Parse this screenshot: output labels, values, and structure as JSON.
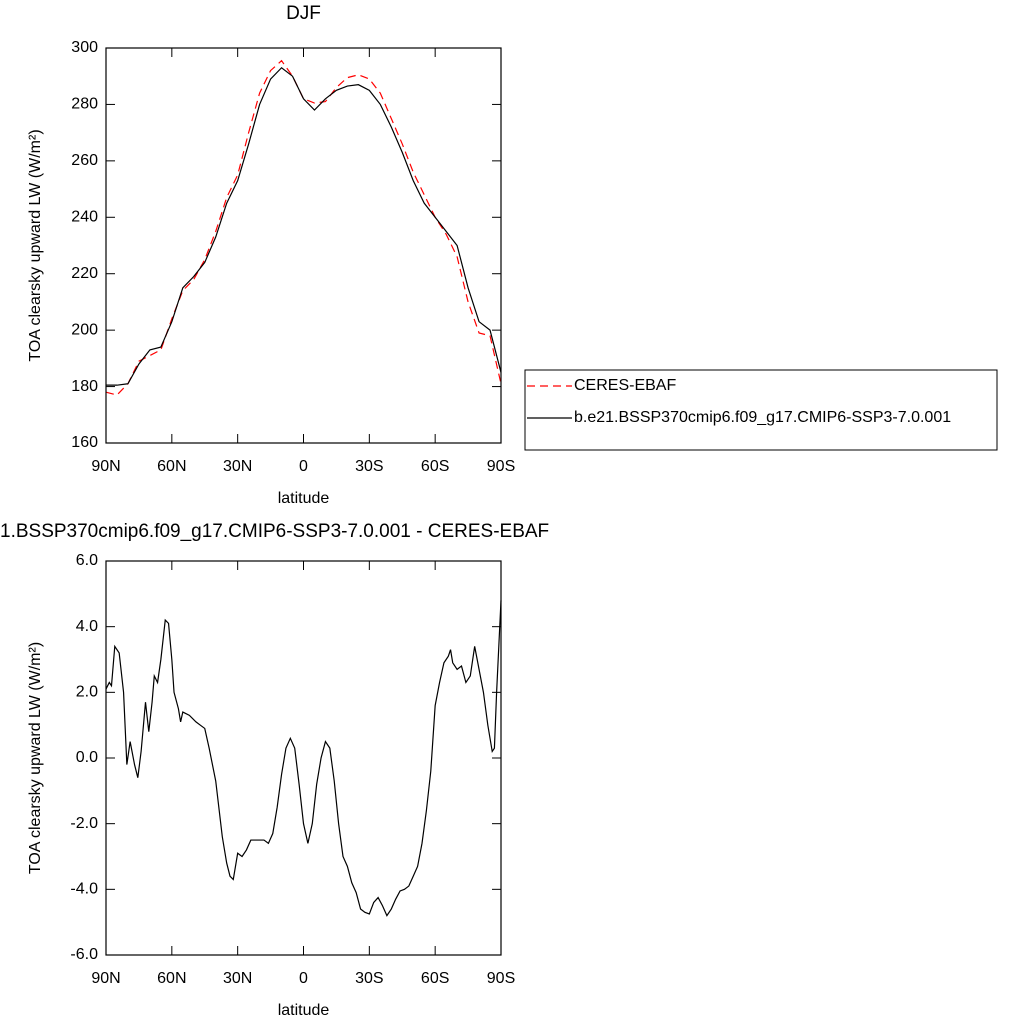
{
  "chart_data": [
    {
      "type": "line",
      "title": "DJF",
      "xlabel": "latitude",
      "ylabel": "TOA clearsky upward LW (W/m²)",
      "x": [
        90,
        85,
        80,
        75,
        70,
        65,
        60,
        55,
        50,
        45,
        40,
        35,
        30,
        25,
        20,
        15,
        10,
        5,
        0,
        -5,
        -10,
        -15,
        -20,
        -25,
        -30,
        -35,
        -40,
        -45,
        -50,
        -55,
        -60,
        -65,
        -70,
        -75,
        -80,
        -85,
        -90
      ],
      "series": [
        {
          "name": "CERES-EBAF",
          "color": "#ff0000",
          "linestyle": "dashed",
          "values": [
            178,
            177,
            181,
            189,
            191,
            193,
            204,
            214,
            218,
            225,
            235,
            247,
            255,
            270,
            284,
            292,
            295.5,
            290,
            282,
            280.5,
            281,
            286,
            289.5,
            290.5,
            289,
            284,
            275,
            266,
            256,
            248,
            240,
            234,
            226,
            210,
            199,
            198,
            181
          ]
        },
        {
          "name": "b.e21.BSSP370cmip6.f09_g17.CMIP6-SSP3-7.0.001",
          "color": "#000000",
          "linestyle": "solid",
          "values": [
            180.5,
            180.5,
            181,
            188,
            193,
            194,
            203,
            215,
            219,
            224,
            233,
            245,
            253,
            266,
            280,
            289,
            293,
            290,
            282,
            278,
            282,
            285,
            286.5,
            287,
            285,
            280,
            272,
            263,
            253,
            245,
            240,
            235,
            230,
            215,
            203,
            200,
            185
          ]
        }
      ],
      "xlim": [
        90,
        -90
      ],
      "xticks": [
        {
          "value": 90,
          "label": "90N"
        },
        {
          "value": 60,
          "label": "60N"
        },
        {
          "value": 30,
          "label": "30N"
        },
        0,
        {
          "value": -30,
          "label": "30S"
        },
        {
          "value": -60,
          "label": "60S"
        },
        {
          "value": -90,
          "label": "90S"
        }
      ],
      "ylim": [
        160,
        300
      ],
      "yticks": [
        160,
        180,
        200,
        220,
        240,
        260,
        280,
        300
      ],
      "grid": false,
      "legend": "right"
    },
    {
      "type": "line",
      "title": "1.BSSP370cmip6.f09_g17.CMIP6-SSP3-7.0.001 - CERES-EBAF",
      "xlabel": "latitude",
      "ylabel": "TOA clearsky upward LW (W/m²)",
      "x": [
        90,
        88.5,
        87.5,
        86,
        84,
        82,
        80.5,
        79,
        77,
        75.5,
        74,
        72,
        70.5,
        69,
        68,
        66.5,
        65,
        63,
        61.5,
        60,
        59,
        57,
        56,
        55,
        52,
        49,
        47,
        45,
        43,
        40,
        37,
        35,
        33.5,
        32,
        30,
        28,
        26,
        24,
        20,
        18,
        16,
        14,
        12,
        10,
        8,
        6,
        4,
        2,
        0,
        -2,
        -4,
        -6,
        -8,
        -10,
        -12,
        -14,
        -16,
        -18,
        -20,
        -22,
        -24,
        -26,
        -28,
        -30,
        -32,
        -34,
        -36,
        -38,
        -40,
        -42,
        -44,
        -46,
        -48,
        -50,
        -52,
        -54,
        -56,
        -58,
        -60,
        -62,
        -64,
        -66,
        -67,
        -68,
        -70,
        -72,
        -74,
        -76,
        -78,
        -80,
        -82,
        -84,
        -86,
        -87,
        -88,
        -90
      ],
      "series": [
        {
          "color": "#000000",
          "linestyle": "solid",
          "values": [
            2.1,
            2.3,
            2.2,
            3.4,
            3.2,
            2.0,
            -0.2,
            0.5,
            -0.2,
            -0.6,
            0.2,
            1.7,
            0.8,
            1.7,
            2.5,
            2.3,
            3.0,
            4.2,
            4.1,
            3.0,
            2.0,
            1.5,
            1.1,
            1.4,
            1.3,
            1.1,
            1.0,
            0.9,
            0.3,
            -0.7,
            -2.4,
            -3.2,
            -3.6,
            -3.7,
            -2.9,
            -3.0,
            -2.8,
            -2.5,
            -2.5,
            -2.5,
            -2.6,
            -2.3,
            -1.5,
            -0.5,
            0.3,
            0.6,
            0.3,
            -0.8,
            -2.0,
            -2.6,
            -2.0,
            -0.8,
            0.0,
            0.5,
            0.3,
            -0.7,
            -2.0,
            -3.0,
            -3.3,
            -3.8,
            -4.1,
            -4.6,
            -4.7,
            -4.75,
            -4.4,
            -4.25,
            -4.5,
            -4.8,
            -4.6,
            -4.3,
            -4.05,
            -4.0,
            -3.9,
            -3.6,
            -3.3,
            -2.6,
            -1.6,
            -0.4,
            1.6,
            2.3,
            2.9,
            3.1,
            3.3,
            2.9,
            2.7,
            2.8,
            2.3,
            2.5,
            3.4,
            2.7,
            2.0,
            1.0,
            0.2,
            0.3,
            2.0,
            4.8
          ]
        }
      ],
      "xlim": [
        90,
        -90
      ],
      "xticks": [
        {
          "value": 90,
          "label": "90N"
        },
        {
          "value": 60,
          "label": "60N"
        },
        {
          "value": 30,
          "label": "30N"
        },
        0,
        {
          "value": -30,
          "label": "30S"
        },
        {
          "value": -60,
          "label": "60S"
        },
        {
          "value": -90,
          "label": "90S"
        }
      ],
      "ylim": [
        -6,
        6
      ],
      "yticks": [
        {
          "value": -6,
          "label": "-6.0"
        },
        {
          "value": -4,
          "label": "-4.0"
        },
        {
          "value": -2,
          "label": "-2.0"
        },
        {
          "value": 0,
          "label": "0.0"
        },
        {
          "value": 2,
          "label": "2.0"
        },
        {
          "value": 4,
          "label": "4.0"
        },
        {
          "value": 6,
          "label": "6.0"
        }
      ],
      "grid": false
    }
  ]
}
